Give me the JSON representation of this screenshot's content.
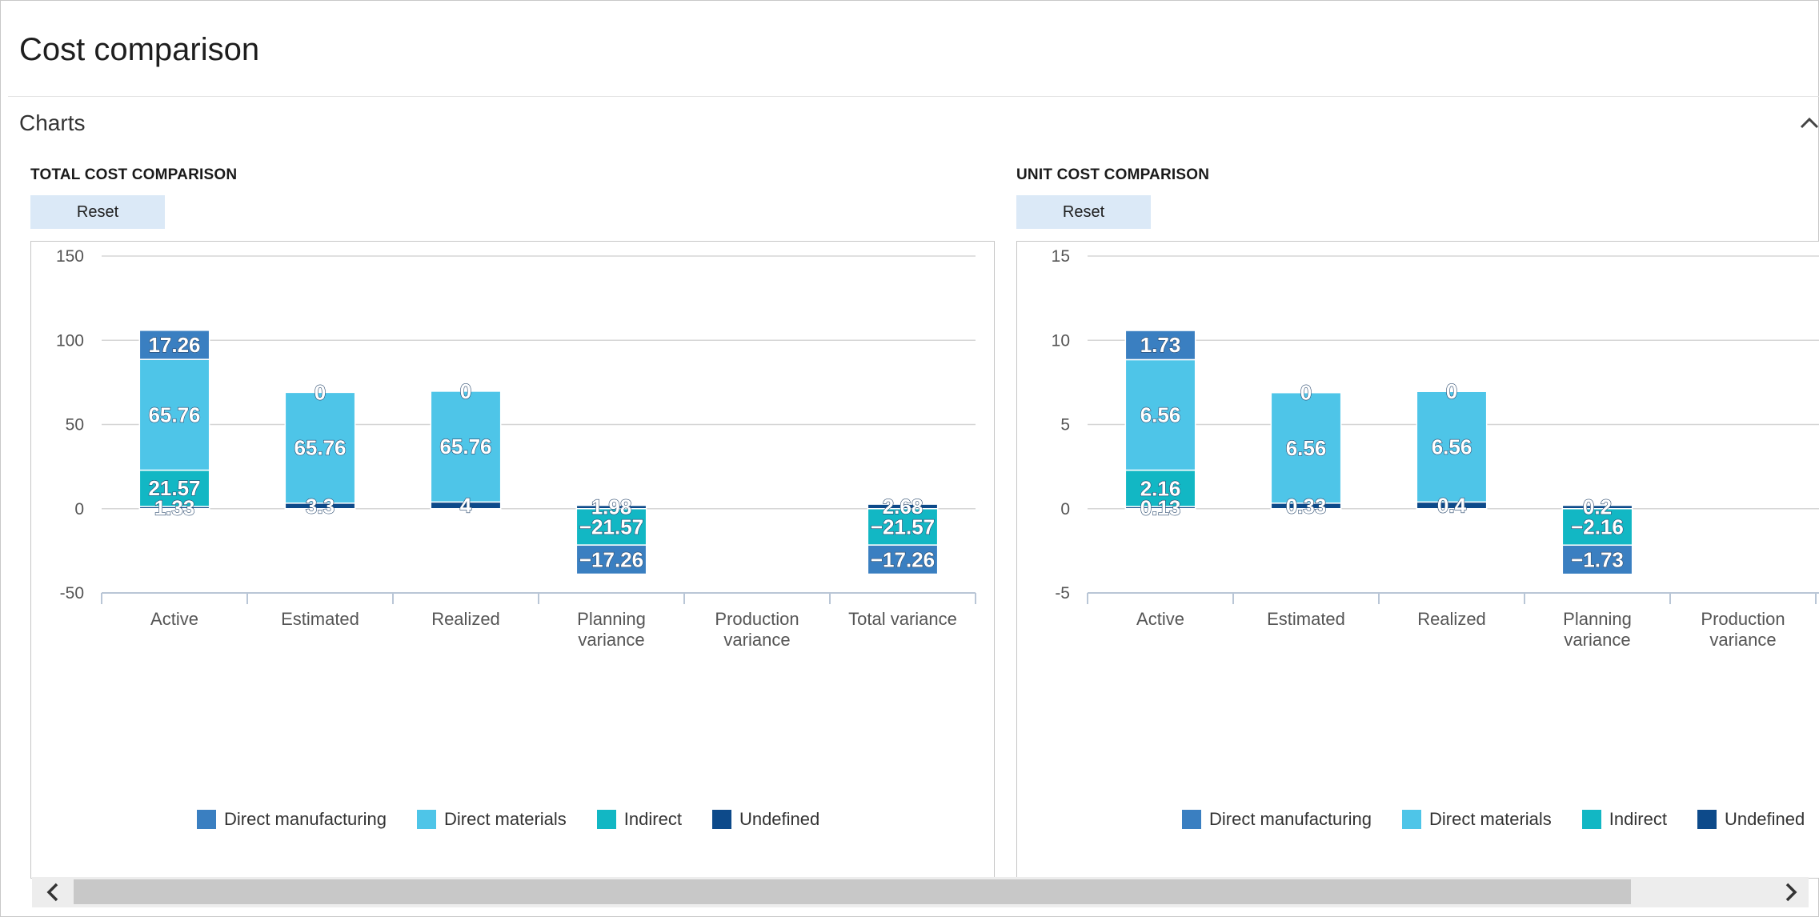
{
  "page": {
    "title": "Cost comparison"
  },
  "section": {
    "title": "Charts"
  },
  "colors": {
    "direct_manufacturing": "#3a7fc1",
    "direct_materials": "#4ec5e8",
    "indirect": "#12b7c4",
    "undefined": "#0d4a8a"
  },
  "icons": {
    "collapse": "chevron-up-icon",
    "scroll_left": "chevron-left-icon",
    "scroll_right": "chevron-right-icon"
  },
  "charts": [
    {
      "title": "TOTAL COST COMPARISON",
      "reset_label": "Reset",
      "legend": [
        "Direct manufacturing",
        "Direct materials",
        "Indirect",
        "Undefined"
      ]
    },
    {
      "title": "UNIT COST COMPARISON",
      "reset_label": "Reset",
      "legend": [
        "Direct manufacturing",
        "Direct materials",
        "Indirect",
        "Undefined"
      ]
    }
  ],
  "chart_data": [
    {
      "type": "bar",
      "stacked": true,
      "title": "TOTAL COST COMPARISON",
      "categories": [
        "Active",
        "Estimated",
        "Realized",
        "Planning variance",
        "Production variance",
        "Total variance"
      ],
      "ylim": [
        -50,
        150
      ],
      "yticks": [
        150,
        100,
        50,
        0,
        -50
      ],
      "grid": true,
      "legend_position": "bottom",
      "series": [
        {
          "name": "Undefined",
          "color": "#0d4a8a",
          "values": [
            1.33,
            3.3,
            4,
            1.98,
            0,
            2.68
          ],
          "labels": [
            "1.33",
            "3.3",
            "4",
            "1.98",
            "",
            "2.68"
          ]
        },
        {
          "name": "Indirect",
          "color": "#12b7c4",
          "values": [
            21.57,
            0,
            0,
            -21.57,
            0,
            -21.57
          ],
          "labels": [
            "21.57",
            "",
            "",
            "−21.57",
            "",
            "−21.57"
          ]
        },
        {
          "name": "Direct materials",
          "color": "#4ec5e8",
          "values": [
            65.76,
            65.76,
            65.76,
            0,
            0,
            0
          ],
          "labels": [
            "65.76",
            "65.76",
            "65.76",
            "",
            "",
            ""
          ]
        },
        {
          "name": "Direct manufacturing",
          "color": "#3a7fc1",
          "values": [
            17.26,
            0,
            0,
            -17.26,
            0,
            -17.26
          ],
          "labels": [
            "17.26",
            "0",
            "0",
            "−17.26",
            "",
            "−17.26"
          ]
        }
      ]
    },
    {
      "type": "bar",
      "stacked": true,
      "title": "UNIT COST COMPARISON",
      "categories": [
        "Active",
        "Estimated",
        "Realized",
        "Planning variance",
        "Production variance"
      ],
      "ylim": [
        -5,
        15
      ],
      "yticks": [
        15,
        10,
        5,
        0,
        -5
      ],
      "grid": true,
      "legend_position": "bottom",
      "series": [
        {
          "name": "Undefined",
          "color": "#0d4a8a",
          "values": [
            0.13,
            0.33,
            0.4,
            0.2,
            0
          ],
          "labels": [
            "0.13",
            "0.33",
            "0.4",
            "0.2",
            ""
          ]
        },
        {
          "name": "Indirect",
          "color": "#12b7c4",
          "values": [
            2.16,
            0,
            0,
            -2.16,
            0
          ],
          "labels": [
            "2.16",
            "",
            "",
            "−2.16",
            ""
          ]
        },
        {
          "name": "Direct materials",
          "color": "#4ec5e8",
          "values": [
            6.56,
            6.56,
            6.56,
            0,
            0
          ],
          "labels": [
            "6.56",
            "6.56",
            "6.56",
            "",
            ""
          ]
        },
        {
          "name": "Direct manufacturing",
          "color": "#3a7fc1",
          "values": [
            1.73,
            0,
            0,
            -1.73,
            0
          ],
          "labels": [
            "1.73",
            "0",
            "0",
            "−1.73",
            ""
          ]
        }
      ]
    }
  ]
}
